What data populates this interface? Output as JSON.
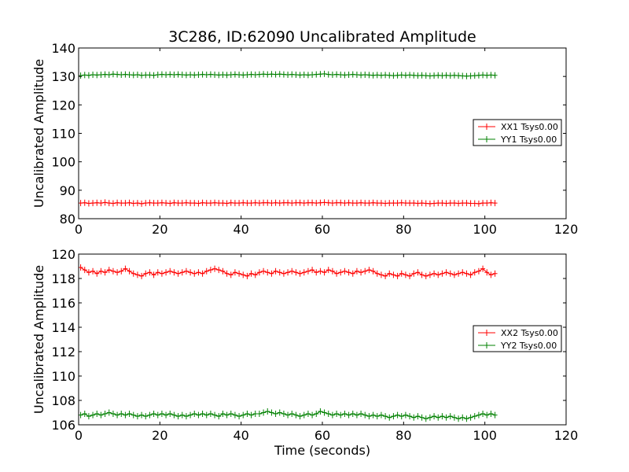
{
  "figure_title": "3C286, ID:62090 Uncalibrated Amplitude",
  "colors": {
    "red": "#ff0000",
    "green": "#008000",
    "frame": "#000000"
  },
  "chart_data": [
    {
      "type": "line",
      "title": "3C286, ID:62090 Uncalibrated Amplitude",
      "xlabel": "",
      "ylabel": "Uncalibrated Amplitude",
      "xlim": [
        0,
        120
      ],
      "ylim": [
        80,
        140
      ],
      "xticks": [
        0,
        20,
        40,
        60,
        80,
        100,
        120
      ],
      "yticks": [
        80,
        90,
        100,
        110,
        120,
        130,
        140
      ],
      "grid": false,
      "legend_position": "center-right",
      "series": [
        {
          "name": "XX1 Tsys0.00",
          "color": "#ff0000",
          "marker": "+",
          "x_start": 0.5,
          "x_step": 1.0,
          "values": [
            85.5,
            85.6,
            85.4,
            85.5,
            85.6,
            85.5,
            85.7,
            85.5,
            85.4,
            85.6,
            85.5,
            85.5,
            85.6,
            85.4,
            85.5,
            85.3,
            85.5,
            85.6,
            85.5,
            85.5,
            85.6,
            85.5,
            85.4,
            85.6,
            85.5,
            85.5,
            85.6,
            85.5,
            85.5,
            85.4,
            85.6,
            85.5,
            85.5,
            85.6,
            85.5,
            85.5,
            85.4,
            85.6,
            85.5,
            85.5,
            85.6,
            85.5,
            85.5,
            85.6,
            85.5,
            85.6,
            85.6,
            85.5,
            85.6,
            85.5,
            85.6,
            85.6,
            85.5,
            85.6,
            85.6,
            85.5,
            85.6,
            85.6,
            85.5,
            85.6,
            85.7,
            85.6,
            85.5,
            85.6,
            85.6,
            85.5,
            85.6,
            85.5,
            85.5,
            85.6,
            85.5,
            85.5,
            85.6,
            85.5,
            85.5,
            85.4,
            85.5,
            85.5,
            85.5,
            85.6,
            85.5,
            85.5,
            85.5,
            85.4,
            85.5,
            85.4,
            85.3,
            85.4,
            85.5,
            85.5,
            85.4,
            85.5,
            85.5,
            85.4,
            85.5,
            85.5,
            85.4,
            85.4,
            85.3,
            85.5,
            85.5,
            85.6,
            85.5
          ]
        },
        {
          "name": "YY1 Tsys0.00",
          "color": "#008000",
          "marker": "+",
          "x_start": 0.5,
          "x_step": 1.0,
          "values": [
            130.3,
            130.5,
            130.4,
            130.6,
            130.5,
            130.6,
            130.7,
            130.6,
            130.8,
            130.7,
            130.6,
            130.7,
            130.6,
            130.5,
            130.6,
            130.4,
            130.5,
            130.5,
            130.4,
            130.6,
            130.7,
            130.6,
            130.7,
            130.6,
            130.7,
            130.6,
            130.5,
            130.6,
            130.5,
            130.6,
            130.7,
            130.6,
            130.7,
            130.6,
            130.5,
            130.6,
            130.5,
            130.6,
            130.7,
            130.6,
            130.5,
            130.6,
            130.7,
            130.6,
            130.7,
            130.8,
            130.7,
            130.8,
            130.7,
            130.8,
            130.7,
            130.6,
            130.7,
            130.6,
            130.5,
            130.6,
            130.5,
            130.6,
            130.7,
            130.8,
            130.9,
            130.7,
            130.6,
            130.7,
            130.6,
            130.5,
            130.6,
            130.7,
            130.6,
            130.5,
            130.6,
            130.5,
            130.4,
            130.5,
            130.4,
            130.5,
            130.4,
            130.3,
            130.4,
            130.5,
            130.4,
            130.5,
            130.4,
            130.3,
            130.4,
            130.3,
            130.2,
            130.3,
            130.4,
            130.3,
            130.4,
            130.3,
            130.4,
            130.3,
            130.2,
            130.1,
            130.2,
            130.3,
            130.4,
            130.5,
            130.4,
            130.5,
            130.4
          ]
        }
      ]
    },
    {
      "type": "line",
      "title": "",
      "xlabel": "Time (seconds)",
      "ylabel": "Uncalibrated Amplitude",
      "xlim": [
        0,
        120
      ],
      "ylim": [
        106,
        120
      ],
      "xticks": [
        0,
        20,
        40,
        60,
        80,
        100,
        120
      ],
      "yticks": [
        106,
        108,
        110,
        112,
        114,
        116,
        118,
        120
      ],
      "grid": false,
      "legend_position": "center-right",
      "series": [
        {
          "name": "XX2 Tsys0.00",
          "color": "#ff0000",
          "marker": "+",
          "x_start": 0.5,
          "x_step": 1.0,
          "values": [
            118.9,
            118.7,
            118.5,
            118.6,
            118.4,
            118.6,
            118.5,
            118.7,
            118.6,
            118.5,
            118.6,
            118.8,
            118.6,
            118.4,
            118.3,
            118.2,
            118.4,
            118.5,
            118.3,
            118.5,
            118.4,
            118.5,
            118.6,
            118.5,
            118.4,
            118.5,
            118.6,
            118.5,
            118.4,
            118.5,
            118.4,
            118.6,
            118.7,
            118.8,
            118.7,
            118.6,
            118.4,
            118.3,
            118.5,
            118.4,
            118.3,
            118.2,
            118.4,
            118.3,
            118.5,
            118.6,
            118.5,
            118.4,
            118.6,
            118.5,
            118.4,
            118.5,
            118.6,
            118.5,
            118.4,
            118.5,
            118.6,
            118.7,
            118.5,
            118.6,
            118.5,
            118.7,
            118.6,
            118.4,
            118.5,
            118.6,
            118.5,
            118.4,
            118.6,
            118.5,
            118.6,
            118.7,
            118.6,
            118.4,
            118.3,
            118.2,
            118.4,
            118.3,
            118.2,
            118.4,
            118.3,
            118.2,
            118.4,
            118.5,
            118.3,
            118.2,
            118.3,
            118.4,
            118.3,
            118.4,
            118.5,
            118.4,
            118.3,
            118.4,
            118.5,
            118.4,
            118.3,
            118.5,
            118.6,
            118.8,
            118.5,
            118.3,
            118.4
          ]
        },
        {
          "name": "YY2 Tsys0.00",
          "color": "#008000",
          "marker": "+",
          "x_start": 0.5,
          "x_step": 1.0,
          "values": [
            106.8,
            106.9,
            106.7,
            106.8,
            106.9,
            106.8,
            106.9,
            107.0,
            106.9,
            106.8,
            106.9,
            106.8,
            106.9,
            106.8,
            106.7,
            106.8,
            106.7,
            106.8,
            106.9,
            106.8,
            106.9,
            106.8,
            106.9,
            106.8,
            106.7,
            106.8,
            106.7,
            106.8,
            106.9,
            106.8,
            106.9,
            106.8,
            106.9,
            106.8,
            106.7,
            106.9,
            106.8,
            106.9,
            106.8,
            106.7,
            106.8,
            106.9,
            106.8,
            106.9,
            106.9,
            107.0,
            107.1,
            107.0,
            106.9,
            107.0,
            106.9,
            106.8,
            106.9,
            106.8,
            106.7,
            106.8,
            106.9,
            106.8,
            106.9,
            107.1,
            107.0,
            106.9,
            106.8,
            106.9,
            106.8,
            106.9,
            106.8,
            106.9,
            106.8,
            106.9,
            106.8,
            106.7,
            106.8,
            106.7,
            106.8,
            106.7,
            106.6,
            106.7,
            106.8,
            106.7,
            106.8,
            106.7,
            106.6,
            106.7,
            106.6,
            106.5,
            106.6,
            106.7,
            106.6,
            106.7,
            106.6,
            106.7,
            106.6,
            106.5,
            106.6,
            106.5,
            106.6,
            106.7,
            106.8,
            106.9,
            106.8,
            106.9,
            106.8
          ]
        }
      ]
    }
  ]
}
